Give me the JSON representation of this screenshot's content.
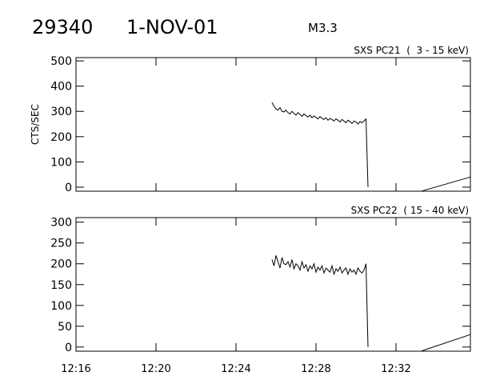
{
  "header": {
    "id": "29340",
    "date": "1-NOV-01",
    "class": "M3.3"
  },
  "chart_data": [
    {
      "type": "line",
      "title": "SXS PC21  (  3 - 15 keV)",
      "y_label": "CTS/SEC",
      "x": [
        745.8,
        745.9,
        746.0,
        746.1,
        746.2,
        746.3,
        746.4,
        746.5,
        746.6,
        746.7,
        746.8,
        746.9,
        747.0,
        747.1,
        747.2,
        747.3,
        747.4,
        747.5,
        747.6,
        747.7,
        747.8,
        747.9,
        748.0,
        748.1,
        748.2,
        748.3,
        748.4,
        748.5,
        748.6,
        748.7,
        748.8,
        748.9,
        749.0,
        749.1,
        749.2,
        749.3,
        749.4,
        749.5,
        749.6,
        749.7,
        749.8,
        749.9,
        750.0,
        750.1,
        750.2,
        750.3,
        750.4,
        750.5,
        750.6,
        null,
        753.3,
        755.72
      ],
      "series": [
        {
          "color": "#000000",
          "values": [
            335,
            320,
            310,
            305,
            315,
            300,
            298,
            305,
            295,
            290,
            300,
            292,
            285,
            295,
            288,
            280,
            290,
            283,
            278,
            285,
            275,
            282,
            276,
            270,
            280,
            272,
            268,
            275,
            265,
            272,
            268,
            262,
            270,
            265,
            258,
            268,
            262,
            255,
            265,
            260,
            252,
            262,
            258,
            250,
            260,
            255,
            262,
            270,
            0,
            null,
            -15,
            40
          ]
        }
      ],
      "xlim": [
        736,
        755.72
      ],
      "ylim": [
        -16,
        513
      ],
      "xticks": [
        {
          "value": 736,
          "label": "12:16"
        },
        {
          "value": 740,
          "label": "12:20"
        },
        {
          "value": 744,
          "label": "12:24"
        },
        {
          "value": 748,
          "label": "12:28"
        },
        {
          "value": 752,
          "label": "12:32"
        }
      ],
      "yticks": [
        0,
        100,
        200,
        300,
        400,
        500
      ],
      "show_xtick_labels": false
    },
    {
      "type": "line",
      "title": "SXS PC22  ( 15 - 40 keV)",
      "x": [
        745.8,
        745.9,
        746.0,
        746.1,
        746.2,
        746.3,
        746.4,
        746.5,
        746.6,
        746.7,
        746.8,
        746.9,
        747.0,
        747.1,
        747.2,
        747.3,
        747.4,
        747.5,
        747.6,
        747.7,
        747.8,
        747.9,
        748.0,
        748.1,
        748.2,
        748.3,
        748.4,
        748.5,
        748.6,
        748.7,
        748.8,
        748.9,
        749.0,
        749.1,
        749.2,
        749.3,
        749.4,
        749.5,
        749.6,
        749.7,
        749.8,
        749.9,
        750.0,
        750.1,
        750.2,
        750.3,
        750.4,
        750.5,
        750.6,
        null,
        753.3,
        755.72
      ],
      "series": [
        {
          "color": "#000000",
          "values": [
            210,
            195,
            220,
            205,
            190,
            215,
            200,
            198,
            205,
            192,
            210,
            188,
            200,
            195,
            185,
            205,
            190,
            198,
            182,
            195,
            188,
            200,
            180,
            192,
            185,
            195,
            178,
            190,
            185,
            180,
            195,
            175,
            188,
            182,
            192,
            178,
            185,
            190,
            175,
            188,
            180,
            185,
            175,
            190,
            182,
            178,
            185,
            200,
            0,
            null,
            -9,
            30
          ]
        }
      ],
      "xlim": [
        736,
        755.72
      ],
      "ylim": [
        -10,
        311
      ],
      "xticks": [
        {
          "value": 736,
          "label": "12:16"
        },
        {
          "value": 740,
          "label": "12:20"
        },
        {
          "value": 744,
          "label": "12:24"
        },
        {
          "value": 748,
          "label": "12:28"
        },
        {
          "value": 752,
          "label": "12:32"
        }
      ],
      "yticks": [
        0,
        50,
        100,
        150,
        200,
        250,
        300
      ],
      "show_xtick_labels": true
    }
  ]
}
